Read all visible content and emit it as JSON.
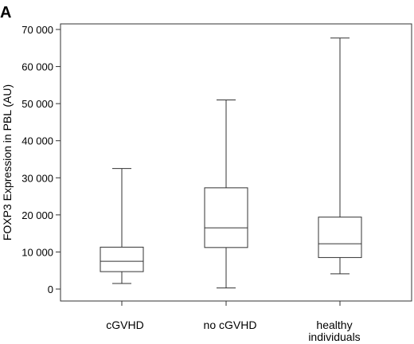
{
  "panel_label": "A",
  "chart_data": {
    "type": "box",
    "title": "",
    "xlabel": "",
    "ylabel": "FOXP3 Expression in  PBL (AU)",
    "ylim": [
      0,
      70000
    ],
    "yticks": [
      0,
      10000,
      20000,
      30000,
      40000,
      50000,
      60000,
      70000
    ],
    "ytick_labels": [
      "0",
      "10 000",
      "20 000",
      "30 000",
      "40 000",
      "50 000",
      "60 000",
      "70 000"
    ],
    "grid": false,
    "categories": [
      {
        "lines": [
          "cGVHD"
        ]
      },
      {
        "lines": [
          "no cGVHD"
        ]
      },
      {
        "lines": [
          "healthy",
          "individuals"
        ]
      }
    ],
    "boxes": [
      {
        "min": 1500,
        "q1": 4700,
        "median": 7500,
        "q3": 11300,
        "max": 32500
      },
      {
        "min": 300,
        "q1": 11200,
        "median": 16500,
        "q3": 27300,
        "max": 51000
      },
      {
        "min": 4100,
        "q1": 8500,
        "median": 12200,
        "q3": 19400,
        "max": 67700
      }
    ]
  }
}
